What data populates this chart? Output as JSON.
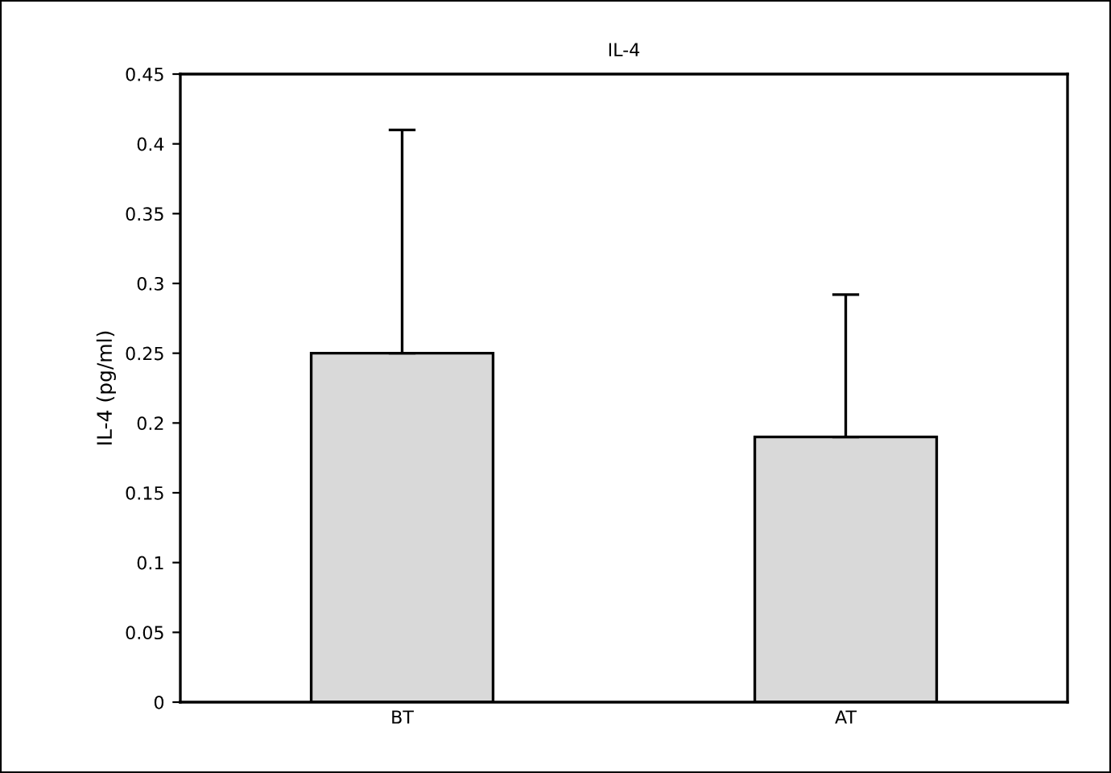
{
  "chart_data": {
    "type": "bar",
    "title": "IL-4",
    "ylabel": "IL-4 (pg/ml)",
    "categories": [
      "BT",
      "AT"
    ],
    "values": [
      0.25,
      0.19
    ],
    "errors": [
      [
        0.25,
        0.41
      ],
      [
        0.19,
        0.292
      ]
    ],
    "color": "#d9d9d9",
    "ylim": [
      0,
      0.45
    ],
    "yticks": [
      0,
      0.05,
      0.1,
      0.15,
      0.2,
      0.25,
      0.3,
      0.35,
      0.4,
      0.45
    ],
    "grid": false
  }
}
